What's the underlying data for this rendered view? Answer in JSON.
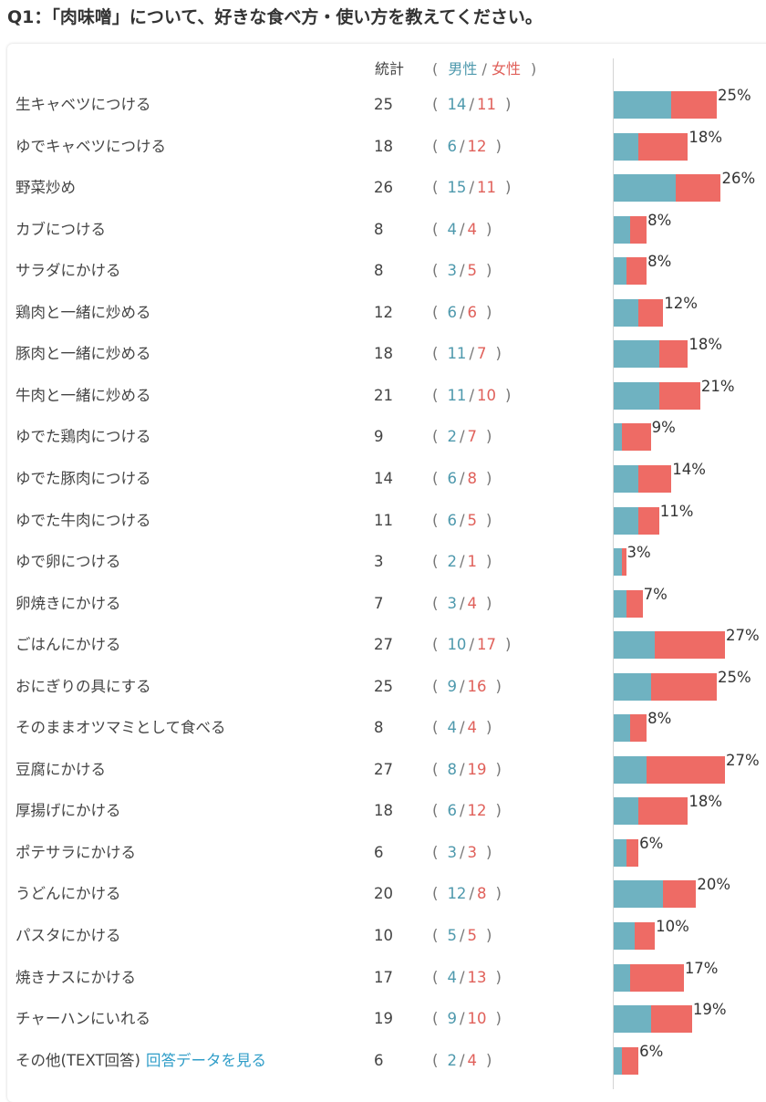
{
  "title": "Q1：「肉味噌」について、好きな食べ方・使い方を教えてください。",
  "header": {
    "total_label": "統計",
    "open_paren": "(",
    "male_label": "男性",
    "slash": "/",
    "female_label": "女性",
    "close_paren": ")"
  },
  "colors": {
    "male": "#6fb2c1",
    "female": "#ee6b65",
    "link": "#2f9dc8"
  },
  "chart_data": {
    "type": "bar",
    "orientation": "horizontal",
    "stacked": true,
    "categories": [
      "生キャベツにつける",
      "ゆでキャベツにつける",
      "野菜炒め",
      "カブにつける",
      "サラダにかける",
      "鶏肉と一緒に炒める",
      "豚肉と一緒に炒める",
      "牛肉と一緒に炒める",
      "ゆでた鶏肉につける",
      "ゆでた豚肉につける",
      "ゆでた牛肉につける",
      "ゆで卵につける",
      "卵焼きにかける",
      "ごはんにかける",
      "おにぎりの具にする",
      "そのままオツマミとして食べる",
      "豆腐にかける",
      "厚揚げにかける",
      "ポテサラにかける",
      "うどんにかける",
      "パスタにかける",
      "焼きナスにかける",
      "チャーハンにいれる",
      "その他(TEXT回答)"
    ],
    "totals": [
      25,
      18,
      26,
      8,
      8,
      12,
      18,
      21,
      9,
      14,
      11,
      3,
      7,
      27,
      25,
      8,
      27,
      18,
      6,
      20,
      10,
      17,
      19,
      6
    ],
    "series": [
      {
        "name": "男性",
        "values": [
          14,
          6,
          15,
          4,
          3,
          6,
          11,
          11,
          2,
          6,
          6,
          2,
          3,
          10,
          9,
          4,
          8,
          6,
          3,
          12,
          5,
          4,
          9,
          2
        ]
      },
      {
        "name": "女性",
        "values": [
          11,
          12,
          11,
          4,
          5,
          6,
          7,
          10,
          7,
          8,
          5,
          1,
          4,
          17,
          16,
          4,
          19,
          12,
          3,
          8,
          5,
          13,
          10,
          4
        ]
      }
    ],
    "percent_labels": [
      "25%",
      "18%",
      "26%",
      "8%",
      "8%",
      "12%",
      "18%",
      "21%",
      "9%",
      "14%",
      "11%",
      "3%",
      "7%",
      "27%",
      "25%",
      "8%",
      "27%",
      "18%",
      "6%",
      "20%",
      "10%",
      "17%",
      "19%",
      "6%"
    ],
    "xlim": [
      0,
      27
    ]
  },
  "other_link": "回答データを見る"
}
